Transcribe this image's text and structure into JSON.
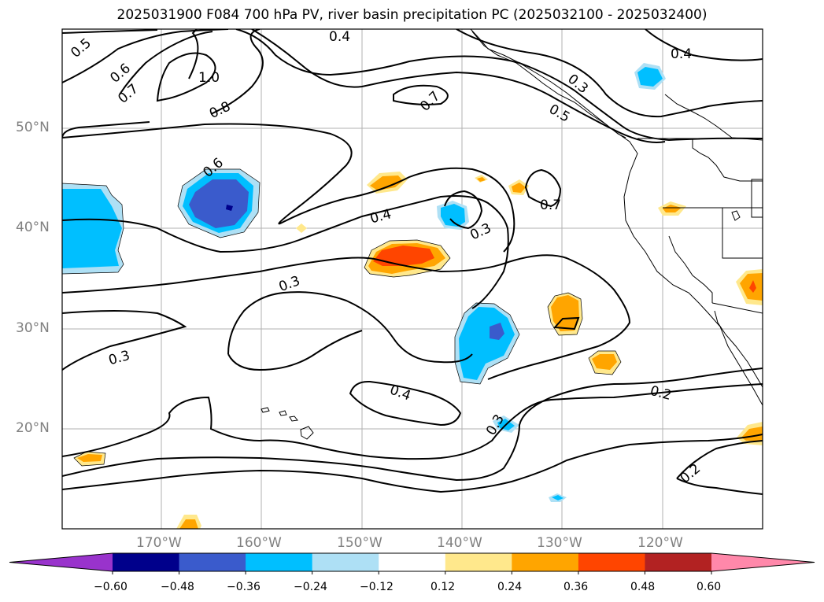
{
  "title": "2025031900 F084 700 hPa PV, river basin precipitation PC (2025032100 - 2025032400)",
  "latitude_labels": [
    "50°N",
    "40°N",
    "30°N",
    "20°N"
  ],
  "longitude_labels": [
    "170°W",
    "160°W",
    "150°W",
    "140°W",
    "130°W",
    "120°W"
  ],
  "contour_labels": [
    "0.5",
    "0.6",
    "0.7",
    "1.0",
    "0.8",
    "0.4",
    "0.3",
    "0.5",
    "0.4",
    "0.7",
    "0.6",
    "0.4",
    "0.7",
    "0.3",
    "0.3",
    "0.3",
    "0.4",
    "0.3",
    "0.2",
    "0.2"
  ],
  "colorbar": {
    "ticks": [
      "−0.60",
      "−0.48",
      "−0.36",
      "−0.24",
      "−0.12",
      "0.12",
      "0.24",
      "0.36",
      "0.48",
      "0.60"
    ],
    "colors": [
      "#9933cc",
      "#00008b",
      "#3a5bcc",
      "#00bfff",
      "#aee0f5",
      "#ffffff",
      "#ffe88c",
      "#ffa500",
      "#ff4500",
      "#b22222",
      "#ff88aa"
    ]
  },
  "colors": {
    "shading_light_blue": "#aee0f5",
    "shading_blue": "#00bfff",
    "shading_royal_blue": "#3a5bcc",
    "shading_navy": "#00008b",
    "shading_yellow": "#ffe88c",
    "shading_orange": "#ffa500",
    "shading_red_orange": "#ff4500",
    "gridline": "#b0b0b0",
    "contour": "#000000"
  }
}
